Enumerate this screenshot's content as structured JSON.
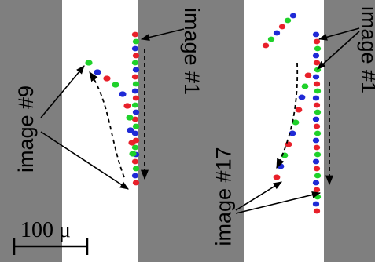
{
  "labels": {
    "left_panel_top": "image #1",
    "left_panel_bottom": "image #9",
    "right_panel_top": "image #1",
    "right_panel_bottom": "image #17"
  },
  "scale_bar": {
    "text": "100 μ"
  },
  "colors": {
    "wall": "#7f7f7f",
    "channel": "#ffffff",
    "red": "#e8202a",
    "green": "#1fd12a",
    "blue": "#1f2ad6",
    "arrow": "#000000"
  }
}
